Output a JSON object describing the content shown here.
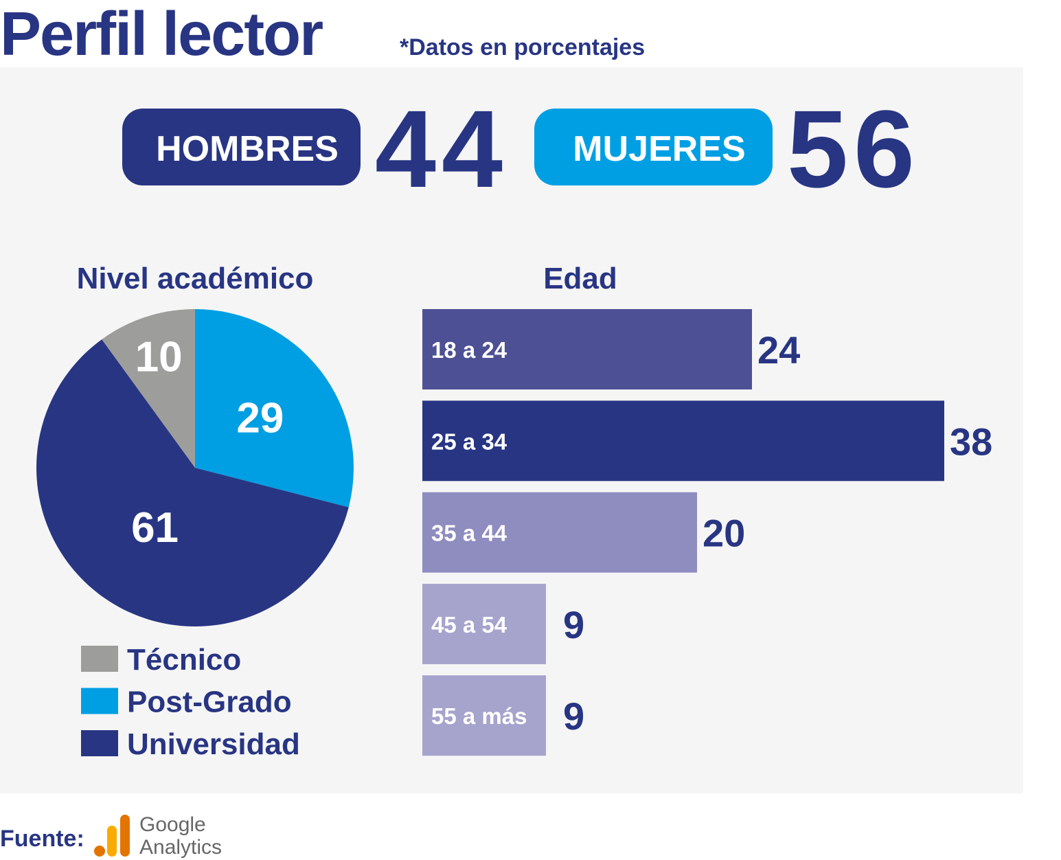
{
  "title": "Perfil lector",
  "subtitle": "*Datos en porcentajes",
  "gender": [
    {
      "label": "HOMBRES",
      "value": 44,
      "color": "#283583"
    },
    {
      "label": "MUJERES",
      "value": 56,
      "color": "#009fe3"
    }
  ],
  "chart_data": [
    {
      "type": "pie",
      "title": "Nivel académico",
      "categories": [
        "Técnico",
        "Post-Grado",
        "Universidad"
      ],
      "values": [
        10,
        29,
        61
      ],
      "colors": [
        "#9d9d9c",
        "#009fe3",
        "#283583"
      ]
    },
    {
      "type": "bar",
      "title": "Edad",
      "categories": [
        "18 a 24",
        "25 a 34",
        "35 a 44",
        "45 a 54",
        "55 a más"
      ],
      "values": [
        24,
        38,
        20,
        9,
        9
      ],
      "colors": [
        "#4e5095",
        "#283583",
        "#8f8cbf",
        "#a6a3cd",
        "#a6a3cd"
      ]
    }
  ],
  "source": {
    "label": "Fuente:",
    "logo_line1": "Google",
    "logo_line2": "Analytics"
  }
}
